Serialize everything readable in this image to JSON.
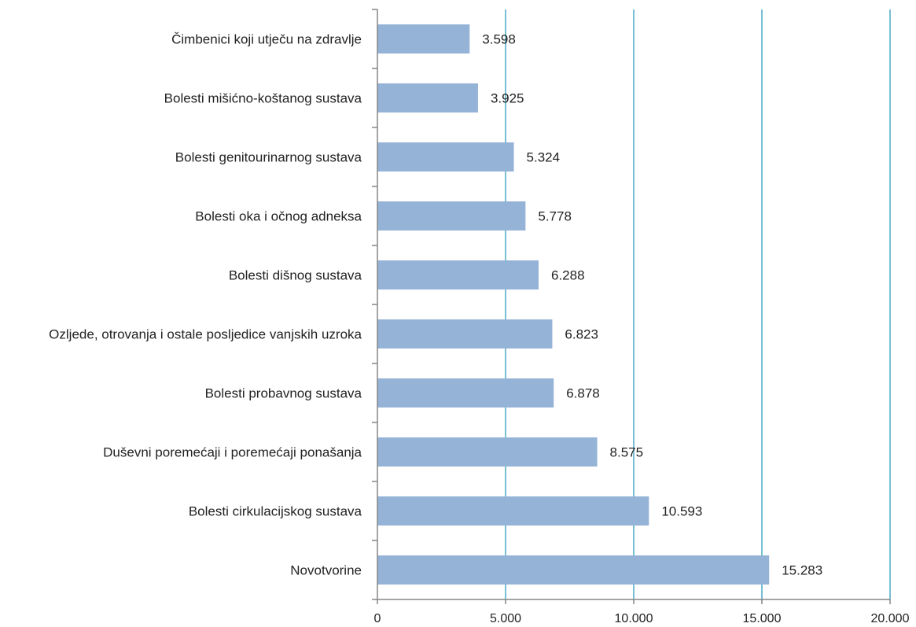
{
  "chart_data": {
    "type": "bar",
    "orientation": "horizontal",
    "categories": [
      "Čimbenici koji utječu na zdravlje",
      "Bolesti mišićno-koštanog sustava",
      "Bolesti genitourinarnog sustava",
      "Bolesti oka i očnog adneksa",
      "Bolesti dišnog sustava",
      "Ozljede, otrovanja i ostale posljedice vanjskih uzroka",
      "Bolesti probavnog sustava",
      "Duševni poremećaji i poremećaji ponašanja",
      "Bolesti cirkulacijskog sustava",
      "Novotvorine"
    ],
    "values": [
      3598,
      3925,
      5324,
      5778,
      6288,
      6823,
      6878,
      8575,
      10593,
      15283
    ],
    "value_labels": [
      "3.598",
      "3.925",
      "5.324",
      "5.778",
      "6.288",
      "6.823",
      "6.878",
      "8.575",
      "10.593",
      "15.283"
    ],
    "xlim": [
      0,
      20000
    ],
    "x_ticks": [
      0,
      5000,
      10000,
      15000,
      20000
    ],
    "x_tick_labels": [
      "0",
      "5.000",
      "10.000",
      "15.000",
      "20.000"
    ],
    "title": "",
    "xlabel": "",
    "ylabel": "",
    "grid": "vertical",
    "legend": "none"
  },
  "colors": {
    "bar": "#95b3d7",
    "grid": "#4bacc6",
    "axis": "#868686"
  }
}
